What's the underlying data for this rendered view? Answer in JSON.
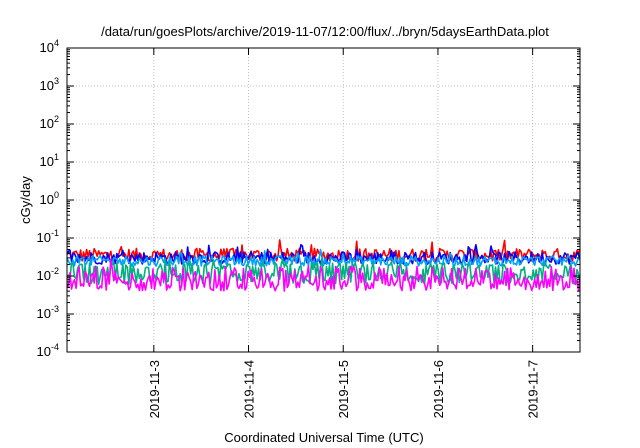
{
  "chart_data": {
    "type": "line",
    "title": "/data/run/goesPlots/archive/2019-11-07/12:00/flux/../bryn/5daysEarthData.plot",
    "xlabel": "Coordinated Universal Time (UTC)",
    "ylabel": "cGy/day",
    "yscale": "log",
    "ylim": [
      0.0001,
      10000
    ],
    "yticks": [
      {
        "value": 0.0001,
        "base": "10",
        "exp": "-4"
      },
      {
        "value": 0.001,
        "base": "10",
        "exp": "-3"
      },
      {
        "value": 0.01,
        "base": "10",
        "exp": "-2"
      },
      {
        "value": 0.1,
        "base": "10",
        "exp": "-1"
      },
      {
        "value": 1,
        "base": "10",
        "exp": "0"
      },
      {
        "value": 10,
        "base": "10",
        "exp": "1"
      },
      {
        "value": 100,
        "base": "10",
        "exp": "2"
      },
      {
        "value": 1000,
        "base": "10",
        "exp": "3"
      },
      {
        "value": 10000,
        "base": "10",
        "exp": "4"
      }
    ],
    "xlim": [
      "2019-11-02 02:00",
      "2019-11-07 12:00"
    ],
    "xticks": [
      "2019-11-3",
      "2019-11-4",
      "2019-11-5",
      "2019-11-6",
      "2019-11-7"
    ],
    "grid": true,
    "series": [
      {
        "color": "#ff0000",
        "typical": 0.035,
        "min": 0.025,
        "max": 0.09,
        "dips": false
      },
      {
        "color": "#0000ff",
        "typical": 0.03,
        "min": 0.02,
        "max": 0.07,
        "dips": false
      },
      {
        "color": "#00a0ff",
        "typical": 0.025,
        "min": 0.015,
        "max": 0.05,
        "dips": false
      },
      {
        "color": "#00b080",
        "typical": 0.018,
        "min": 0.006,
        "max": 0.03,
        "dips": true
      },
      {
        "color": "#ff00ff",
        "typical": 0.012,
        "min": 0.004,
        "max": 0.03,
        "dips": true
      }
    ]
  }
}
